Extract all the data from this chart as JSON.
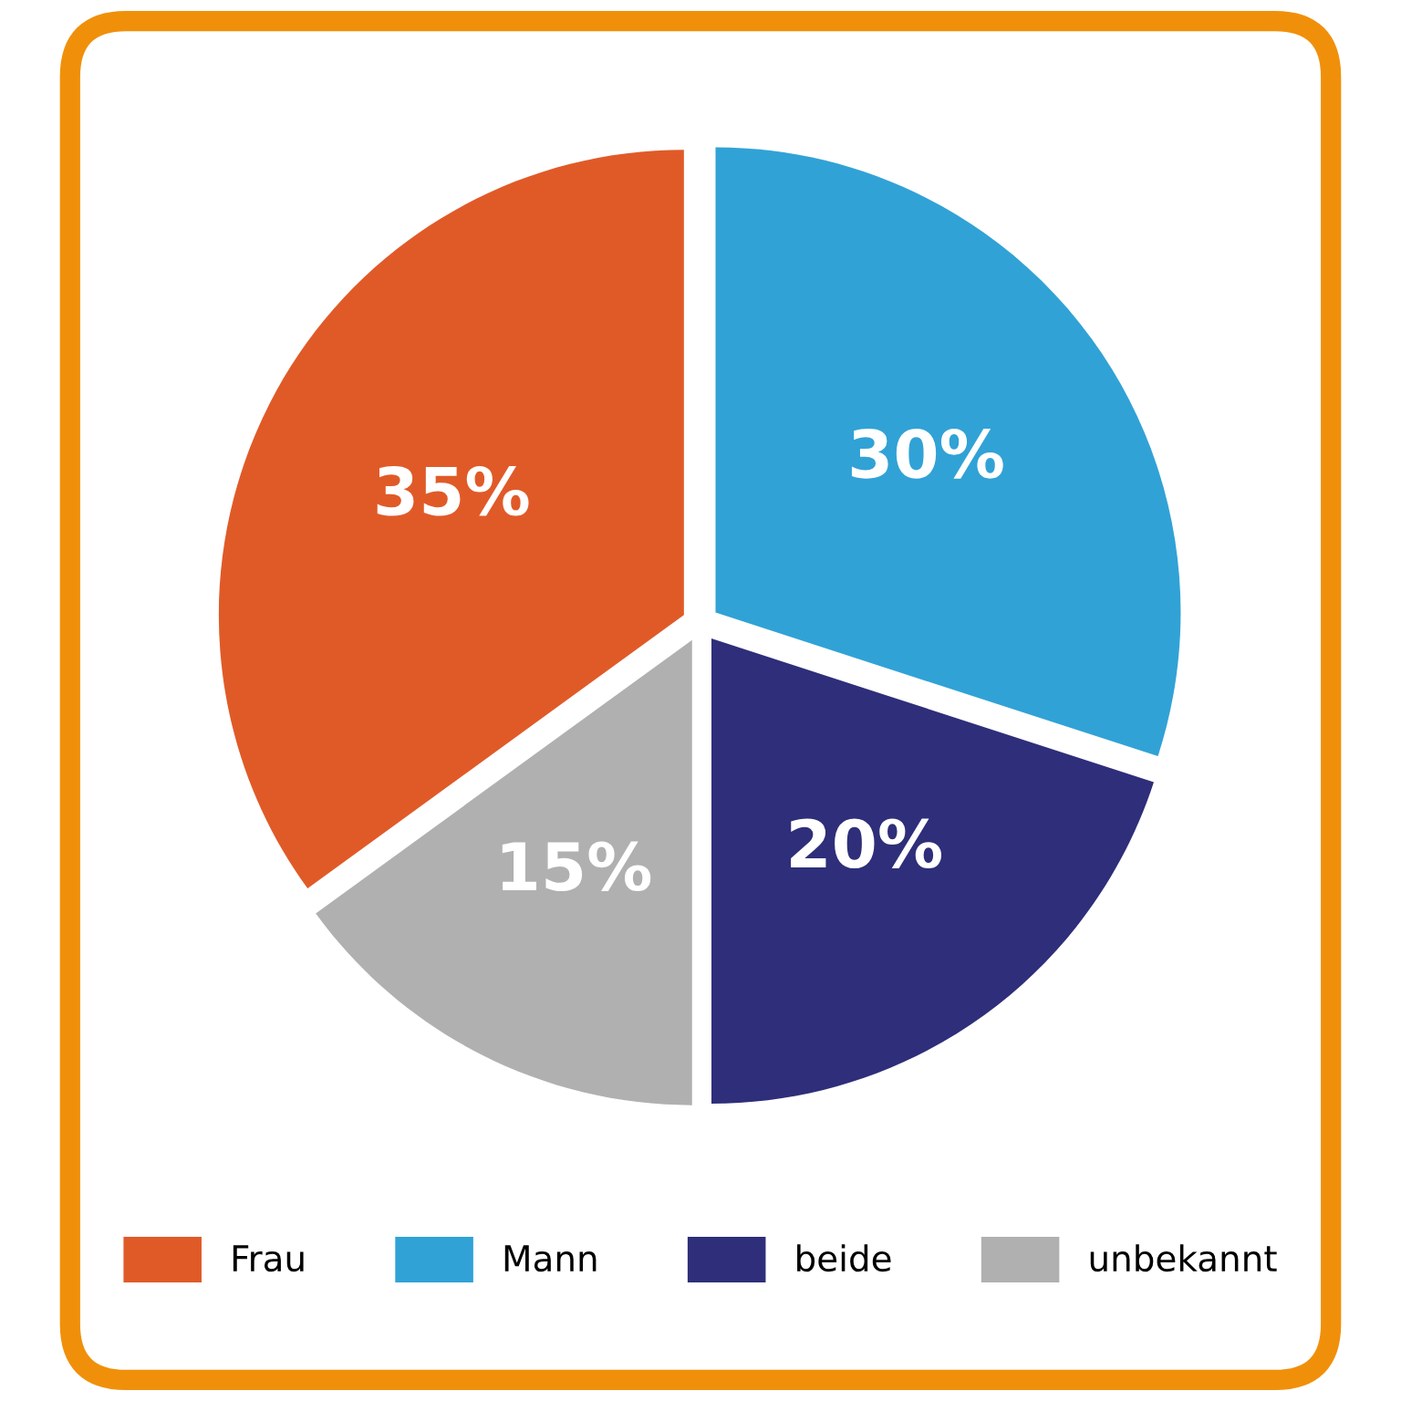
{
  "chart_data": {
    "type": "pie",
    "categories": [
      "Frau",
      "Mann",
      "beide",
      "unbekannt"
    ],
    "values": [
      35,
      30,
      20,
      15
    ],
    "colors": [
      "#e05a28",
      "#31a2d6",
      "#2e2e7a",
      "#b0b0b0"
    ],
    "value_labels": [
      "35%",
      "30%",
      "20%",
      "15%"
    ],
    "legend": "bottom"
  }
}
